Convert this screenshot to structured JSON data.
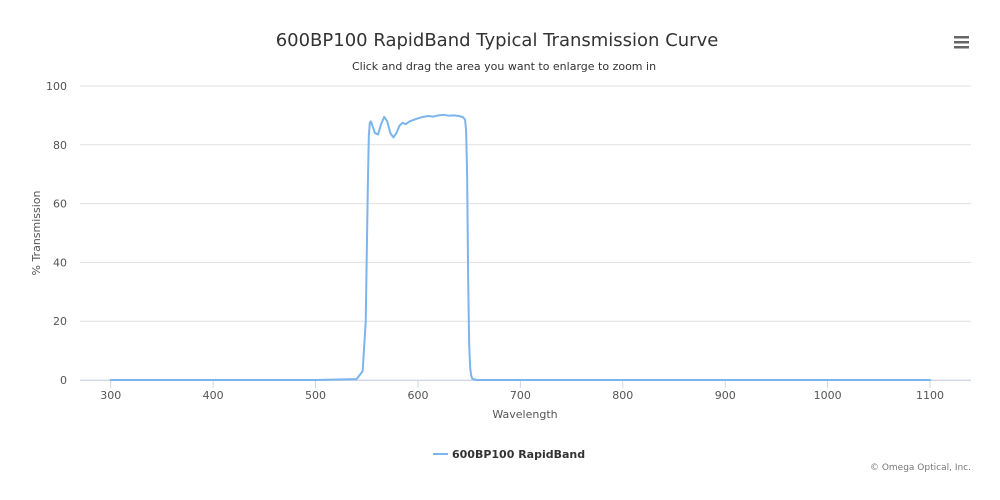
{
  "chart_data": {
    "type": "line",
    "title": "600BP100 RapidBand Typical Transmission Curve",
    "subtitle": "Click and drag the area you want to enlarge to zoom in",
    "xlabel": "Wavelength",
    "ylabel": "% Transmission",
    "xlim": [
      270,
      1140
    ],
    "ylim": [
      0,
      100
    ],
    "x_ticks": [
      300,
      400,
      500,
      600,
      700,
      800,
      900,
      1000,
      1100
    ],
    "y_ticks": [
      0,
      20,
      40,
      60,
      80,
      100
    ],
    "grid": "horizontal",
    "legend": "bottom-center",
    "series": [
      {
        "name": "600BP100 RapidBand",
        "color": "#7cb5ec",
        "x": [
          300,
          500,
          540,
          546,
          549,
          551,
          552,
          553,
          554,
          556,
          558,
          561,
          564,
          567,
          570,
          573,
          576,
          579,
          582,
          585,
          588,
          592,
          596,
          600,
          605,
          610,
          615,
          620,
          625,
          630,
          635,
          640,
          644,
          646,
          647,
          648,
          649,
          650,
          651,
          652,
          653,
          655,
          658,
          665,
          700,
          800,
          900,
          1000,
          1100
        ],
        "y": [
          0,
          0,
          0.3,
          3,
          20,
          65,
          83,
          87.5,
          88,
          86,
          84,
          83.5,
          87,
          89.5,
          88,
          84,
          82.5,
          84,
          86.5,
          87.5,
          87,
          88,
          88.5,
          89,
          89.5,
          89.8,
          89.6,
          90,
          90.2,
          89.9,
          90,
          89.8,
          89.4,
          88.5,
          85,
          70,
          35,
          12,
          4,
          1.5,
          0.5,
          0.2,
          0,
          0,
          0,
          0,
          0,
          0,
          0
        ]
      }
    ]
  },
  "legend_label": "600BP100 RapidBand",
  "credits": "© Omega Optical, Inc.",
  "menu_icon": "hamburger-menu-icon"
}
